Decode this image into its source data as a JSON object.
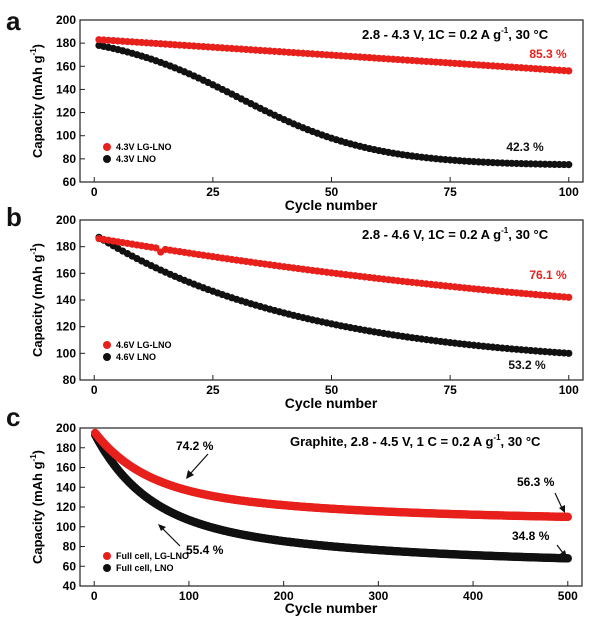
{
  "colors": {
    "red": "#e8201c",
    "black": "#111111"
  },
  "chart_data": [
    {
      "panel": "a",
      "type": "scatter",
      "title": "2.8 - 4.3 V, 1C = 0.2 A g",
      "title_sup": "-1",
      "title_tail": ", 30 °C",
      "xlabel": "Cycle number",
      "ylabel": "Capacity (mAh g",
      "ylabel_sup": "-1",
      "ylabel_tail": ")",
      "xlim": [
        -3,
        103
      ],
      "ylim": [
        60,
        200
      ],
      "xticks": [
        0,
        25,
        50,
        75,
        100
      ],
      "yticks": [
        60,
        80,
        100,
        120,
        140,
        160,
        180,
        200
      ],
      "legend_position": "lower-left",
      "series": [
        {
          "name": "4.3V LG-LNO",
          "color": "red",
          "count": 100,
          "model": "linear",
          "start": 183,
          "end": 156,
          "retention_label": "85.3 %"
        },
        {
          "name": "4.3V LNO",
          "color": "black",
          "count": 100,
          "model": "sigmoid",
          "start": 178,
          "end": 75,
          "retention_label": "42.3 %"
        }
      ]
    },
    {
      "panel": "b",
      "type": "scatter",
      "title": "2.8 - 4.6 V, 1C = 0.2 A g",
      "title_sup": "-1",
      "title_tail": ", 30 °C",
      "xlabel": "Cycle number",
      "ylabel": "Capacity (mAh g",
      "ylabel_sup": "-1",
      "ylabel_tail": ")",
      "xlim": [
        -3,
        103
      ],
      "ylim": [
        80,
        200
      ],
      "xticks": [
        0,
        25,
        50,
        75,
        100
      ],
      "yticks": [
        80,
        100,
        120,
        140,
        160,
        180,
        200
      ],
      "legend_position": "lower-left",
      "series": [
        {
          "name": "4.6V LG-LNO",
          "color": "red",
          "count": 100,
          "model": "concave",
          "start": 186,
          "end": 142,
          "retention_label": "76.1 %"
        },
        {
          "name": "4.6V LNO",
          "color": "black",
          "count": 100,
          "model": "exp",
          "start": 187,
          "end": 100,
          "retention_label": "53.2 %"
        }
      ]
    },
    {
      "panel": "c",
      "type": "scatter",
      "title": "Graphite, 2.8 - 4.5 V, 1 C = 0.2 A g",
      "title_sup": "-1",
      "title_tail": ", 30 °C",
      "xlabel": "Cycle number",
      "ylabel": "Capacity (mAh g",
      "ylabel_sup": "-1",
      "ylabel_tail": ")",
      "xlim": [
        -15,
        515
      ],
      "ylim": [
        40,
        200
      ],
      "xticks": [
        0,
        100,
        200,
        300,
        400,
        500
      ],
      "yticks": [
        40,
        60,
        80,
        100,
        120,
        140,
        160,
        180,
        200
      ],
      "legend_position": "lower-left",
      "series": [
        {
          "name": "Full cell, LG-LNO",
          "color": "red",
          "count": 500,
          "model": "double-exp",
          "start": 195,
          "end": 110
        },
        {
          "name": "Full cell, LNO",
          "color": "black",
          "count": 500,
          "model": "double-exp",
          "start": 193,
          "end": 68
        }
      ],
      "annotations": [
        {
          "text": "74.2 %",
          "color": "black",
          "x": 100,
          "y": 148
        },
        {
          "text": "55.4 %",
          "color": "black",
          "x": 100,
          "y": 106
        },
        {
          "text": "56.3 %",
          "color": "black",
          "x": 500,
          "y": 110
        },
        {
          "text": "34.8 %",
          "color": "black",
          "x": 500,
          "y": 68
        }
      ]
    }
  ]
}
